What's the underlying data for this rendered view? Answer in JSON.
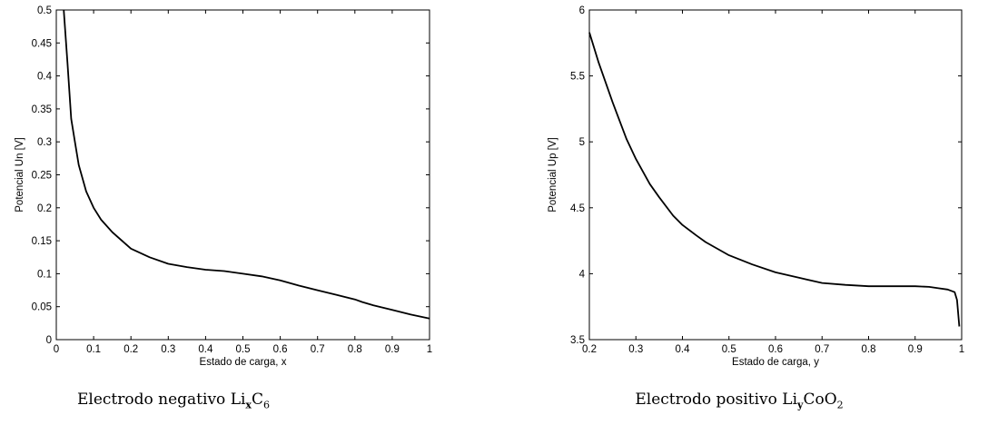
{
  "chart_data": [
    {
      "type": "line",
      "xlabel": "Estado de carga, x",
      "ylabel": "Potencial Un [V]",
      "xlim": [
        0,
        1
      ],
      "ylim": [
        0,
        0.5
      ],
      "xticks": [
        "0",
        "0.1",
        "0.2",
        "0.3",
        "0.4",
        "0.5",
        "0.6",
        "0.7",
        "0.8",
        "0.9",
        "1"
      ],
      "yticks": [
        "0",
        "0.05",
        "0.1",
        "0.15",
        "0.2",
        "0.25",
        "0.3",
        "0.35",
        "0.4",
        "0.45",
        "0.5"
      ],
      "grid": false,
      "caption": {
        "prefix": "Electrodo negativo Li",
        "sub1": "x",
        "mid": "C",
        "sub2": "6"
      },
      "series": [
        {
          "x": [
            0.02,
            0.03,
            0.04,
            0.05,
            0.06,
            0.08,
            0.1,
            0.12,
            0.15,
            0.2,
            0.25,
            0.3,
            0.35,
            0.4,
            0.45,
            0.5,
            0.55,
            0.6,
            0.65,
            0.7,
            0.75,
            0.8,
            0.82,
            0.85,
            0.9,
            0.95,
            1.0
          ],
          "y": [
            0.5,
            0.42,
            0.335,
            0.3,
            0.265,
            0.225,
            0.2,
            0.182,
            0.163,
            0.138,
            0.125,
            0.115,
            0.11,
            0.106,
            0.104,
            0.1,
            0.096,
            0.09,
            0.082,
            0.075,
            0.068,
            0.061,
            0.057,
            0.052,
            0.045,
            0.038,
            0.032
          ]
        }
      ]
    },
    {
      "type": "line",
      "xlabel": "Estado de carga, y",
      "ylabel": "Potencial Up [V]",
      "xlim": [
        0.2,
        1
      ],
      "ylim": [
        3.5,
        6
      ],
      "xticks": [
        "0.2",
        "0.3",
        "0.4",
        "0.5",
        "0.6",
        "0.7",
        "0.8",
        "0.9",
        "1"
      ],
      "yticks": [
        "3.5",
        "4",
        "4.5",
        "5",
        "5.5",
        "6"
      ],
      "grid": false,
      "caption": {
        "prefix": "Electrodo positivo Li",
        "sub1": "y",
        "mid": "CoO",
        "sub2": "2"
      },
      "series": [
        {
          "x": [
            0.2,
            0.22,
            0.25,
            0.28,
            0.3,
            0.33,
            0.35,
            0.38,
            0.4,
            0.43,
            0.45,
            0.5,
            0.55,
            0.6,
            0.65,
            0.7,
            0.75,
            0.8,
            0.85,
            0.9,
            0.93,
            0.95,
            0.97,
            0.985,
            0.99,
            0.995
          ],
          "y": [
            5.83,
            5.6,
            5.3,
            5.02,
            4.87,
            4.68,
            4.58,
            4.44,
            4.37,
            4.29,
            4.24,
            4.14,
            4.07,
            4.01,
            3.97,
            3.93,
            3.915,
            3.905,
            3.905,
            3.905,
            3.9,
            3.89,
            3.88,
            3.86,
            3.8,
            3.6
          ]
        }
      ]
    }
  ]
}
